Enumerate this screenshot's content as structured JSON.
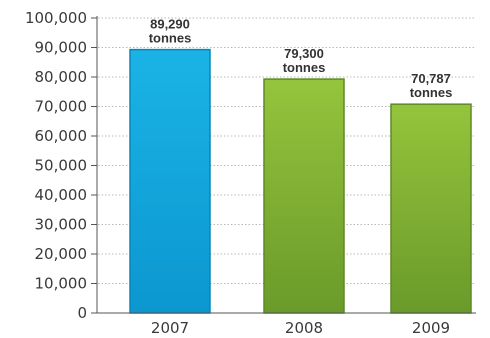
{
  "chart_data": {
    "type": "bar",
    "title": "",
    "xlabel": "",
    "ylabel": "",
    "categories": [
      "2007",
      "2008",
      "2009"
    ],
    "values": [
      89290,
      79300,
      70787
    ],
    "data_labels": [
      {
        "value": "89,290",
        "unit": "tonnes"
      },
      {
        "value": "79,300",
        "unit": "tonnes"
      },
      {
        "value": "70,787",
        "unit": "tonnes"
      }
    ],
    "ylim": [
      0,
      100000
    ],
    "yticks": [
      0,
      10000,
      20000,
      30000,
      40000,
      50000,
      60000,
      70000,
      80000,
      90000,
      100000
    ],
    "ytick_labels": [
      "0",
      "10,000",
      "20,000",
      "30,000",
      "40,000",
      "50,000",
      "60,000",
      "70,000",
      "80,000",
      "90,000",
      "100,000"
    ],
    "grid": "horizontal-dotted",
    "bar_colors": [
      {
        "top": "#1bb3e6",
        "bottom": "#0b97cf",
        "edge": "#0a85b8"
      },
      {
        "top": "#95c43c",
        "bottom": "#6a9a2a",
        "edge": "#5f8a25"
      },
      {
        "top": "#95c43c",
        "bottom": "#6a9a2a",
        "edge": "#5f8a25"
      }
    ],
    "legend": "none"
  }
}
